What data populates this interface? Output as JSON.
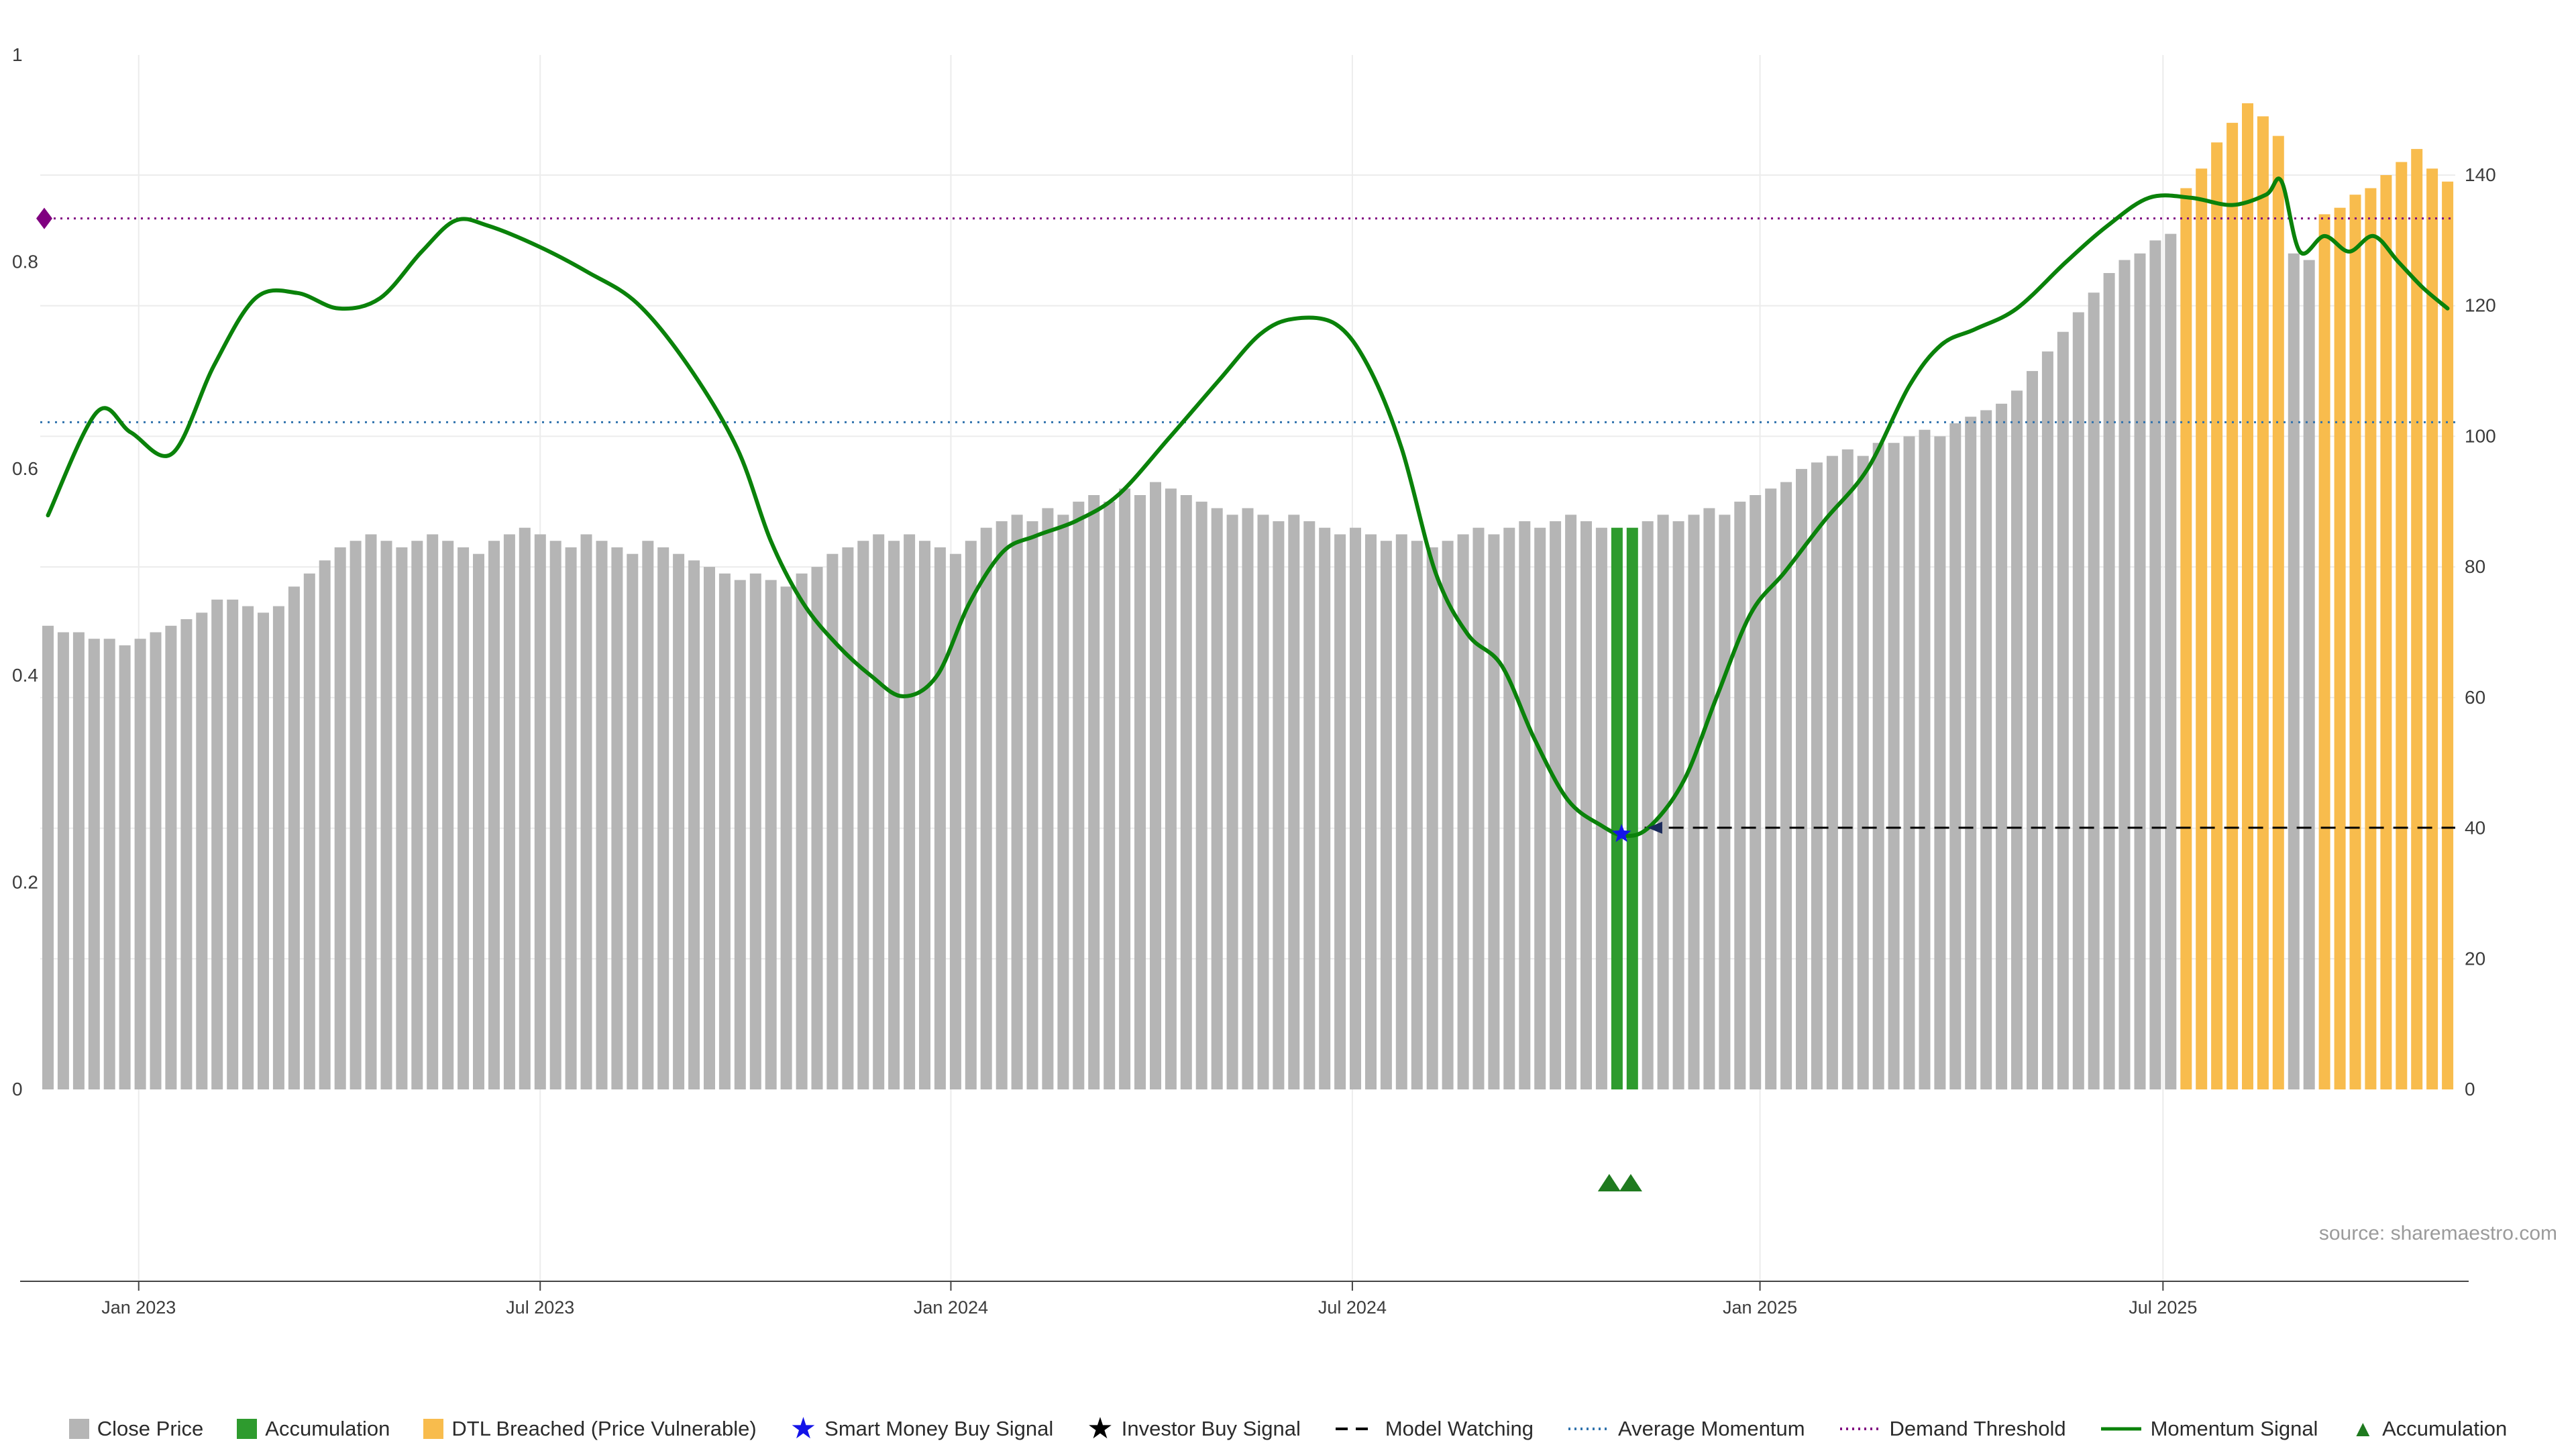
{
  "source_note": "source: sharemaestro.com",
  "colors": {
    "close_price_bar": "#b5b5b5",
    "accumulation_bar": "#2e9b2e",
    "dtl_breached_bar": "#f8bc4d",
    "momentum_line": "#0a820a",
    "average_momentum_line": "#3173ad",
    "demand_threshold_line": "#800080",
    "model_watching_line": "#000000",
    "smart_money_star": "#1414e8",
    "investor_star": "#000000",
    "accumulation_triangle": "#1f7a1f",
    "gridline": "#ececec",
    "axis_text": "#3c3c3c",
    "axis_line": "#444444"
  },
  "legend": [
    {
      "label": "Close Price",
      "swatch": "square",
      "color": "#b5b5b5"
    },
    {
      "label": "Accumulation",
      "swatch": "square",
      "color": "#2e9b2e"
    },
    {
      "label": "DTL Breached (Price Vulnerable)",
      "swatch": "square",
      "color": "#f8bc4d"
    },
    {
      "label": "Smart Money Buy Signal",
      "swatch": "star",
      "color": "#1414e8"
    },
    {
      "label": "Investor Buy Signal",
      "swatch": "star",
      "color": "#000000"
    },
    {
      "label": "Model Watching",
      "swatch": "dashed-line",
      "color": "#000000"
    },
    {
      "label": "Average Momentum",
      "swatch": "dotted-line",
      "color": "#3173ad"
    },
    {
      "label": "Demand Threshold",
      "swatch": "dotted-line",
      "color": "#800080"
    },
    {
      "label": "Momentum Signal",
      "swatch": "solid-line",
      "color": "#0a820a"
    },
    {
      "label": "Accumulation",
      "swatch": "triangle",
      "color": "#1f7a1f"
    }
  ],
  "chart_data": {
    "type": "bar",
    "title": "",
    "xlabel": "",
    "ylabel": "",
    "x_ticks": [
      {
        "week": 6.4,
        "label": "Jan 2023"
      },
      {
        "week": 32.5,
        "label": "Jul 2023"
      },
      {
        "week": 59.2,
        "label": "Jan 2024"
      },
      {
        "week": 85.3,
        "label": "Jul 2024"
      },
      {
        "week": 111.8,
        "label": "Jan 2025"
      },
      {
        "week": 138.0,
        "label": "Jul 2025"
      }
    ],
    "left_axis": {
      "range": [
        0,
        1
      ],
      "ticks": [
        0,
        0.2,
        0.4,
        0.6,
        0.8,
        1
      ]
    },
    "right_axis": {
      "range": [
        0,
        158
      ],
      "ticks": [
        0,
        20,
        40,
        60,
        80,
        100,
        120,
        140
      ]
    },
    "bars": {
      "name": "Close Price (weekly, right axis)",
      "values": [
        71,
        70,
        70,
        69,
        69,
        68,
        69,
        70,
        71,
        72,
        73,
        75,
        75,
        74,
        73,
        74,
        77,
        79,
        81,
        83,
        84,
        85,
        84,
        83,
        84,
        85,
        84,
        83,
        82,
        84,
        85,
        86,
        85,
        84,
        83,
        85,
        84,
        83,
        82,
        84,
        83,
        82,
        81,
        80,
        79,
        78,
        79,
        78,
        77,
        79,
        80,
        82,
        83,
        84,
        85,
        84,
        85,
        84,
        83,
        82,
        84,
        86,
        87,
        88,
        87,
        89,
        88,
        90,
        91,
        90,
        92,
        91,
        93,
        92,
        91,
        90,
        89,
        88,
        89,
        88,
        87,
        88,
        87,
        86,
        85,
        86,
        85,
        84,
        85,
        84,
        83,
        84,
        85,
        86,
        85,
        86,
        87,
        86,
        87,
        88,
        87,
        86,
        86,
        86,
        87,
        88,
        87,
        88,
        89,
        88,
        90,
        91,
        92,
        93,
        95,
        96,
        97,
        98,
        97,
        99,
        99,
        100,
        101,
        100,
        102,
        103,
        104,
        105,
        107,
        110,
        113,
        116,
        119,
        122,
        125,
        127,
        128,
        130,
        131,
        138,
        141,
        145,
        148,
        151,
        149,
        146,
        128,
        127,
        134,
        135,
        137,
        138,
        140,
        142,
        144,
        141,
        139
      ],
      "accumulation_indices": [
        102,
        103
      ],
      "dtl_breached_ranges": [
        [
          139,
          145
        ],
        [
          148,
          156
        ]
      ]
    },
    "momentum_line": {
      "name": "Momentum Signal (left axis, 0-1)",
      "points": [
        [
          0,
          0.555
        ],
        [
          3.2,
          0.655
        ],
        [
          5.4,
          0.635
        ],
        [
          8.1,
          0.615
        ],
        [
          10.8,
          0.7
        ],
        [
          13.5,
          0.765
        ],
        [
          16.2,
          0.77
        ],
        [
          18.9,
          0.755
        ],
        [
          21.6,
          0.765
        ],
        [
          24.3,
          0.81
        ],
        [
          26.5,
          0.84
        ],
        [
          28.6,
          0.835
        ],
        [
          31.9,
          0.815
        ],
        [
          35.1,
          0.79
        ],
        [
          38.3,
          0.76
        ],
        [
          41.6,
          0.7
        ],
        [
          44.8,
          0.62
        ],
        [
          47.0,
          0.53
        ],
        [
          49.1,
          0.47
        ],
        [
          51.3,
          0.43
        ],
        [
          53.5,
          0.4
        ],
        [
          55.6,
          0.38
        ],
        [
          57.8,
          0.4
        ],
        [
          59.9,
          0.47
        ],
        [
          62.1,
          0.52
        ],
        [
          64.2,
          0.535
        ],
        [
          66.9,
          0.55
        ],
        [
          69.6,
          0.575
        ],
        [
          72.9,
          0.63
        ],
        [
          76.1,
          0.685
        ],
        [
          78.8,
          0.73
        ],
        [
          81.0,
          0.745
        ],
        [
          83.7,
          0.74
        ],
        [
          85.8,
          0.7
        ],
        [
          88.0,
          0.62
        ],
        [
          90.2,
          0.5
        ],
        [
          92.3,
          0.44
        ],
        [
          94.5,
          0.41
        ],
        [
          96.6,
          0.34
        ],
        [
          98.8,
          0.28
        ],
        [
          101.0,
          0.255
        ],
        [
          102.6,
          0.245
        ],
        [
          104.2,
          0.255
        ],
        [
          106.4,
          0.3
        ],
        [
          108.5,
          0.38
        ],
        [
          110.7,
          0.46
        ],
        [
          112.9,
          0.5
        ],
        [
          115.5,
          0.55
        ],
        [
          118.3,
          0.6
        ],
        [
          121.0,
          0.68
        ],
        [
          123.1,
          0.72
        ],
        [
          125.3,
          0.735
        ],
        [
          128.0,
          0.755
        ],
        [
          131.2,
          0.8
        ],
        [
          133.9,
          0.835
        ],
        [
          136.6,
          0.862
        ],
        [
          139.3,
          0.862
        ],
        [
          142.0,
          0.855
        ],
        [
          144.2,
          0.865
        ],
        [
          145.2,
          0.878
        ],
        [
          146.4,
          0.81
        ],
        [
          148.0,
          0.825
        ],
        [
          149.6,
          0.81
        ],
        [
          151.2,
          0.825
        ],
        [
          152.8,
          0.8
        ],
        [
          154.4,
          0.775
        ],
        [
          156.0,
          0.755
        ]
      ]
    },
    "hlines": {
      "average_momentum": {
        "value": 0.645,
        "style": "dotted"
      },
      "demand_threshold": {
        "value": 0.842,
        "style": "dotted"
      },
      "model_watching": {
        "value": 0.253,
        "style": "dashed",
        "start_week": 103.8
      }
    },
    "markers": {
      "demand_threshold_diamond": {
        "value": 0.842
      },
      "smart_money_buy_star": {
        "week": 102.3,
        "value": 0.247
      },
      "model_watching_arrow": {
        "week": 104.6,
        "value": 0.253
      },
      "accumulation_triangles": {
        "weeks": [
          101.5,
          102.9
        ]
      }
    }
  }
}
